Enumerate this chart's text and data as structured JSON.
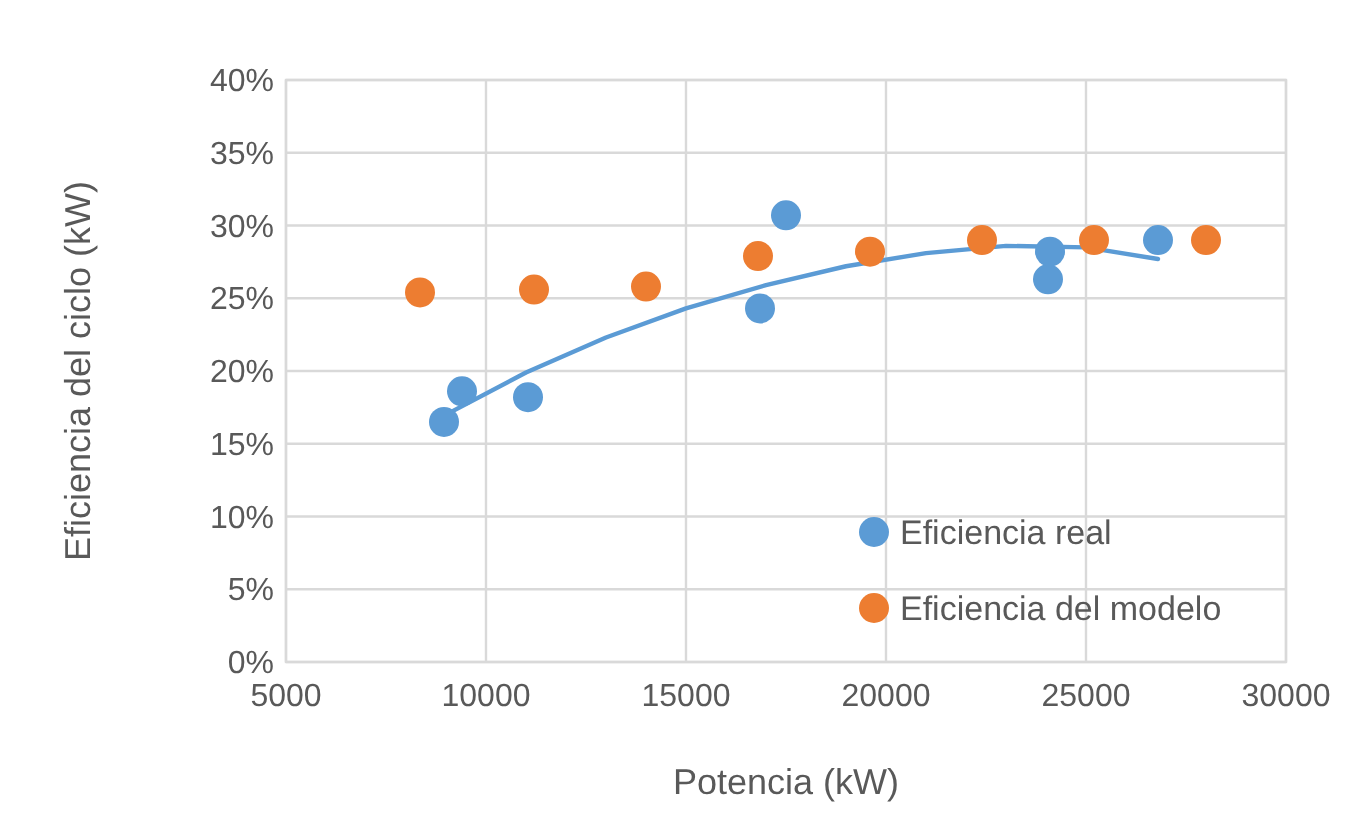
{
  "chart_data": {
    "type": "scatter",
    "xlabel": "Potencia (kW)",
    "ylabel": "Eficiencia del ciclo (kW)",
    "xlim": [
      5000,
      30000
    ],
    "xticks": [
      5000,
      10000,
      15000,
      20000,
      25000,
      30000
    ],
    "ylim": [
      0,
      40
    ],
    "yticks": [
      {
        "value": 0,
        "label": "0%"
      },
      {
        "value": 5,
        "label": "5%"
      },
      {
        "value": 10,
        "label": "10%"
      },
      {
        "value": 15,
        "label": "15%"
      },
      {
        "value": 20,
        "label": "20%"
      },
      {
        "value": 25,
        "label": "25%"
      },
      {
        "value": 30,
        "label": "30%"
      },
      {
        "value": 35,
        "label": "35%"
      },
      {
        "value": 40,
        "label": "40%"
      }
    ],
    "grid": true,
    "legend": "bottom right",
    "marker": "circle",
    "series": [
      {
        "type": "line",
        "color": "#5b9bd5",
        "x": [
          9000,
          11000,
          13000,
          15000,
          17000,
          19000,
          21000,
          23000,
          25000,
          26800
        ],
        "values": [
          17.0,
          19.9,
          22.3,
          24.3,
          25.9,
          27.2,
          28.1,
          28.6,
          28.5,
          27.7
        ],
        "marker": "none"
      },
      {
        "name": "Eficiencia real",
        "color": "#5b9bd5",
        "x": [
          8950,
          9400,
          11050,
          16850,
          17500,
          24050,
          24100,
          26800
        ],
        "values": [
          16.5,
          18.6,
          18.2,
          24.3,
          30.7,
          26.3,
          28.2,
          29.0
        ]
      },
      {
        "name": "Eficiencia del modelo",
        "color": "#ed7d31",
        "x": [
          8350,
          11200,
          14000,
          16800,
          19600,
          22400,
          25200,
          28000
        ],
        "values": [
          25.4,
          25.6,
          25.8,
          27.9,
          28.2,
          29.0,
          29.0,
          29.0
        ]
      }
    ]
  }
}
